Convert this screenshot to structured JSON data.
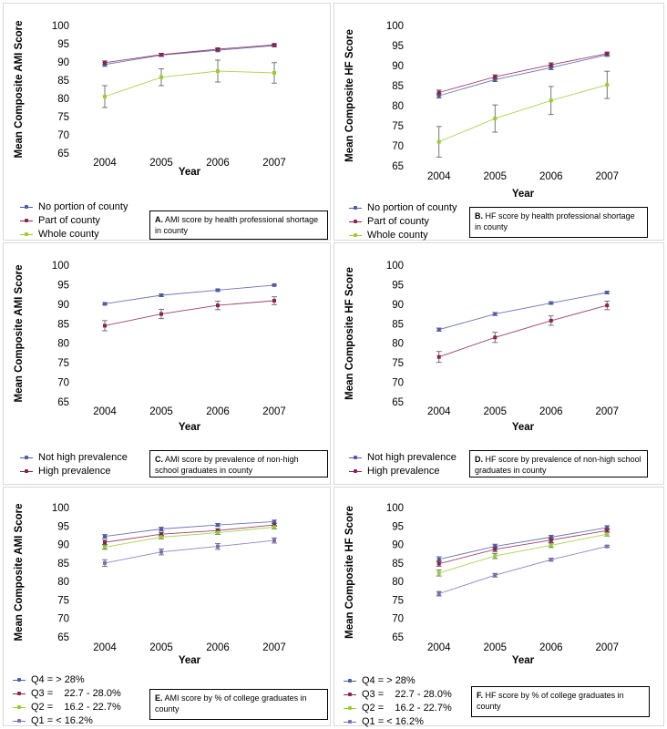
{
  "chart_data": [
    {
      "type": "line",
      "panel": "A",
      "ylabel": "Mean Composite AMI Score",
      "xlabel": "Year",
      "categories": [
        "2004",
        "2005",
        "2006",
        "2007"
      ],
      "ylim": [
        65,
        100
      ],
      "yticks": [
        65,
        70,
        75,
        80,
        85,
        90,
        95,
        100
      ],
      "series": [
        {
          "name": "No portion of county",
          "values": [
            89.3,
            91.9,
            93.2,
            94.5
          ],
          "err": [
            0.5,
            0.4,
            0.4,
            0.3
          ],
          "color": "#4f5ba8"
        },
        {
          "name": "Part of county",
          "values": [
            89.8,
            92.0,
            93.5,
            94.7
          ],
          "err": [
            0.5,
            0.4,
            0.4,
            0.3
          ],
          "color": "#8b2252"
        },
        {
          "name": "Whole county",
          "values": [
            80.5,
            85.8,
            87.5,
            87.0
          ],
          "err": [
            3.0,
            2.3,
            3.0,
            2.8
          ],
          "color": "#9acd32"
        }
      ],
      "caption_letter": "A.",
      "caption_text": " AMI score by health professional shortage in county"
    },
    {
      "type": "line",
      "panel": "B",
      "ylabel": "Mean Composite HF Score",
      "xlabel": "Year",
      "categories": [
        "2004",
        "2005",
        "2006",
        "2007"
      ],
      "ylim": [
        65,
        100
      ],
      "yticks": [
        65,
        70,
        75,
        80,
        85,
        90,
        95,
        100
      ],
      "series": [
        {
          "name": "No portion of county",
          "values": [
            82.5,
            86.5,
            89.5,
            92.7
          ],
          "err": [
            0.6,
            0.5,
            0.5,
            0.4
          ],
          "color": "#4f5ba8"
        },
        {
          "name": "Part of county",
          "values": [
            83.3,
            87.2,
            90.2,
            93.0
          ],
          "err": [
            0.6,
            0.5,
            0.5,
            0.4
          ],
          "color": "#8b2252"
        },
        {
          "name": "Whole county",
          "values": [
            71.0,
            76.8,
            81.3,
            85.2
          ],
          "err": [
            3.8,
            3.4,
            3.5,
            3.4
          ],
          "color": "#9acd32"
        }
      ],
      "caption_letter": "B.",
      "caption_text": " HF score by health professional shortage in county"
    },
    {
      "type": "line",
      "panel": "C",
      "ylabel": "Mean Composite AMI Score",
      "xlabel": "Year",
      "categories": [
        "2004",
        "2005",
        "2006",
        "2007"
      ],
      "ylim": [
        65,
        100
      ],
      "yticks": [
        65,
        70,
        75,
        80,
        85,
        90,
        95,
        100
      ],
      "series": [
        {
          "name": "Not high prevalence",
          "values": [
            90.1,
            92.3,
            93.6,
            94.9
          ],
          "err": [
            0.3,
            0.3,
            0.3,
            0.2
          ],
          "color": "#4f5ba8"
        },
        {
          "name": "High prevalence",
          "values": [
            84.5,
            87.5,
            89.7,
            90.9
          ],
          "err": [
            1.3,
            1.2,
            1.1,
            1.0
          ],
          "color": "#8b2252"
        }
      ],
      "caption_letter": "C.",
      "caption_text": " AMI score by prevalence of non-high school graduates in county"
    },
    {
      "type": "line",
      "panel": "D",
      "ylabel": "Mean Composite HF Score",
      "xlabel": "Year",
      "categories": [
        "2004",
        "2005",
        "2006",
        "2007"
      ],
      "ylim": [
        65,
        100
      ],
      "yticks": [
        65,
        70,
        75,
        80,
        85,
        90,
        95,
        100
      ],
      "series": [
        {
          "name": "Not high prevalence",
          "values": [
            83.5,
            87.5,
            90.3,
            93.0
          ],
          "err": [
            0.4,
            0.4,
            0.3,
            0.3
          ],
          "color": "#4f5ba8"
        },
        {
          "name": "High prevalence",
          "values": [
            76.5,
            81.5,
            85.8,
            89.7
          ],
          "err": [
            1.4,
            1.3,
            1.2,
            1.1
          ],
          "color": "#8b2252"
        }
      ],
      "caption_letter": "D.",
      "caption_text": " HF score by prevalence of non-high school graduates in county"
    },
    {
      "type": "line",
      "panel": "E",
      "ylabel": "Mean Composite AMI Score",
      "xlabel": "Year",
      "categories": [
        "2004",
        "2005",
        "2006",
        "2007"
      ],
      "ylim": [
        65,
        100
      ],
      "yticks": [
        65,
        70,
        75,
        80,
        85,
        90,
        95,
        100
      ],
      "series": [
        {
          "name": "Q4 = > 28%",
          "values": [
            92.2,
            94.2,
            95.3,
            96.2
          ],
          "err": [
            0.5,
            0.5,
            0.4,
            0.4
          ],
          "color": "#4f5ba8"
        },
        {
          "name": "Q3 =    22.7 - 28.0%",
          "values": [
            90.6,
            92.8,
            93.8,
            95.3
          ],
          "err": [
            0.6,
            0.5,
            0.5,
            0.4
          ],
          "color": "#8b2252"
        },
        {
          "name": "Q2 =    16.2 - 22.7%",
          "values": [
            89.3,
            92.0,
            93.2,
            94.7
          ],
          "err": [
            0.6,
            0.5,
            0.5,
            0.5
          ],
          "color": "#9acd32"
        },
        {
          "name": "Q1 = < 16.2%",
          "values": [
            85.0,
            88.0,
            89.5,
            91.1
          ],
          "err": [
            0.9,
            0.8,
            0.8,
            0.7
          ],
          "color": "#7a6fb5"
        }
      ],
      "caption_letter": "E.",
      "caption_text": " AMI score by % of college graduates in county"
    },
    {
      "type": "line",
      "panel": "F",
      "ylabel": "Mean Composite HF Score",
      "xlabel": "Year",
      "categories": [
        "2004",
        "2005",
        "2006",
        "2007"
      ],
      "ylim": [
        65,
        100
      ],
      "yticks": [
        65,
        70,
        75,
        80,
        85,
        90,
        95,
        100
      ],
      "series": [
        {
          "name": "Q4 = > 28%",
          "values": [
            86.0,
            89.5,
            92.0,
            94.6
          ],
          "err": [
            0.7,
            0.6,
            0.5,
            0.5
          ],
          "color": "#4f5ba8"
        },
        {
          "name": "Q3 =    22.7 - 28.0%",
          "values": [
            84.8,
            88.7,
            91.2,
            93.8
          ],
          "err": [
            0.7,
            0.6,
            0.6,
            0.5
          ],
          "color": "#8b2252"
        },
        {
          "name": "Q2 =    16.2 - 22.7%",
          "values": [
            82.3,
            86.9,
            89.8,
            92.8
          ],
          "err": [
            0.8,
            0.7,
            0.6,
            0.5
          ],
          "color": "#9acd32"
        },
        {
          "name": "Q1 = < 16.2%",
          "values": [
            76.7,
            81.7,
            85.9,
            89.5
          ],
          "err": [
            0.6,
            0.5,
            0.4,
            0.3
          ],
          "color": "#7a6fb5"
        }
      ],
      "caption_letter": "F.",
      "caption_text": " HF score by % of college graduates in county"
    }
  ]
}
